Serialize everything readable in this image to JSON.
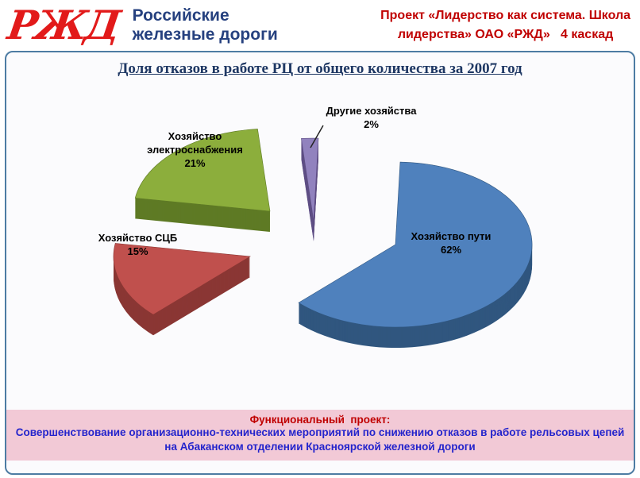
{
  "header": {
    "logo": "РЖД",
    "company": [
      "Российские",
      "железные дороги"
    ],
    "project": [
      "Проект «Лидерство как система. Школа",
      "лидерства» ОАО «РЖД»   4 каскад"
    ]
  },
  "slide": {
    "title": "Доля отказов в работе РЦ от общего количества за 2007 год"
  },
  "chart_data": {
    "type": "pie",
    "style": "3d-exploded",
    "title": "Доля отказов в работе РЦ от общего количества за 2007 год",
    "legend": "none",
    "units": "%",
    "slices": [
      {
        "label": "Хозяйство пути",
        "value": 62,
        "pct": "62%",
        "color": "#4f81bd",
        "side_color": "#30567f"
      },
      {
        "label": "Хозяйство СЦБ",
        "value": 15,
        "pct": "15%",
        "color": "#c0504d",
        "side_color": "#8a3734"
      },
      {
        "label": "Хозяйство электроснабжения",
        "value": 21,
        "pct": "21%",
        "color": "#8cae3c",
        "side_color": "#5e7a25"
      },
      {
        "label": "Другие хозяйства",
        "value": 2,
        "pct": "2%",
        "color": "#9182be",
        "side_color": "#5f4f85"
      }
    ]
  },
  "footer": {
    "heading": "Функциональный  проект:",
    "text": "Совершенствование организационно-технических мероприятий по снижению отказов в работе рельсовых цепей на Абаканском отделении Красноярской железной дороги"
  },
  "colors": {
    "accent_red": "#c00000",
    "logo_red": "#e21a1a",
    "company_navy": "#26417f",
    "title_navy": "#1f3864",
    "border_blue": "#4d7ca3",
    "footer_pink": "#f2c9d6",
    "footer_text_blue": "#2424cc"
  }
}
